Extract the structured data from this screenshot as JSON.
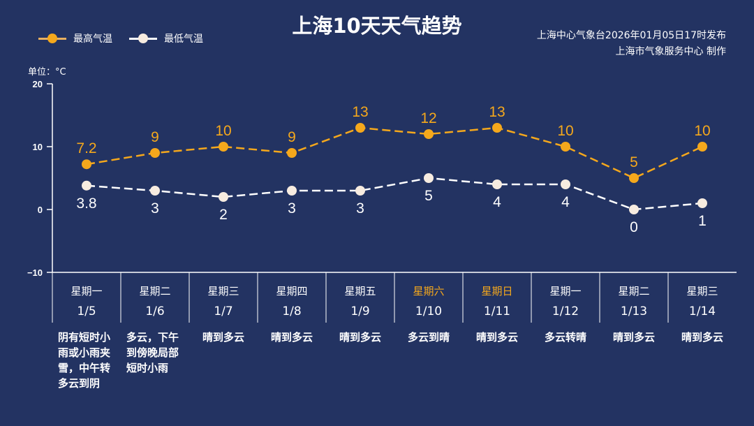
{
  "title": "上海10天天气趋势",
  "publisher": {
    "line1": "上海中心气象台2026年01月05日17时发布",
    "line2": "上海市气象服务中心 制作"
  },
  "colors": {
    "background": "#233362",
    "high": "#f5a81c",
    "low": "#ffffff",
    "weekend": "#f5a81c"
  },
  "chart_data": {
    "type": "line",
    "unit_label": "单位：°C",
    "ylim": [
      -10,
      20
    ],
    "yticks": [
      "20",
      "10",
      "0",
      "−10"
    ],
    "ytick_values": [
      20,
      10,
      0,
      -10
    ],
    "legend": "top-left",
    "series": [
      {
        "name": "最高气温",
        "values": [
          7.2,
          9,
          10,
          9,
          13,
          12,
          13,
          10,
          5,
          10
        ],
        "labels": [
          "7.2",
          "9",
          "10",
          "9",
          "13",
          "12",
          "13",
          "10",
          "5",
          "10"
        ]
      },
      {
        "name": "最低气温",
        "values": [
          3.8,
          3,
          2,
          3,
          3,
          5,
          4,
          4,
          0,
          1
        ],
        "labels": [
          "3.8",
          "3",
          "2",
          "3",
          "3",
          "5",
          "4",
          "4",
          "0",
          "1"
        ]
      }
    ],
    "days": [
      {
        "weekday": "星期一",
        "date": "1/5",
        "weather": "阴有短时小雨或小雨夹雪，中午转多云到阴",
        "weekend": false
      },
      {
        "weekday": "星期二",
        "date": "1/6",
        "weather": "多云，下午到傍晚局部短时小雨",
        "weekend": false
      },
      {
        "weekday": "星期三",
        "date": "1/7",
        "weather": "晴到多云",
        "weekend": false
      },
      {
        "weekday": "星期四",
        "date": "1/8",
        "weather": "晴到多云",
        "weekend": false
      },
      {
        "weekday": "星期五",
        "date": "1/9",
        "weather": "晴到多云",
        "weekend": false
      },
      {
        "weekday": "星期六",
        "date": "1/10",
        "weather": "多云到晴",
        "weekend": true
      },
      {
        "weekday": "星期日",
        "date": "1/11",
        "weather": "晴到多云",
        "weekend": true
      },
      {
        "weekday": "星期一",
        "date": "1/12",
        "weather": "多云转晴",
        "weekend": false
      },
      {
        "weekday": "星期二",
        "date": "1/13",
        "weather": "晴到多云",
        "weekend": false
      },
      {
        "weekday": "星期三",
        "date": "1/14",
        "weather": "晴到多云",
        "weekend": false
      }
    ]
  }
}
